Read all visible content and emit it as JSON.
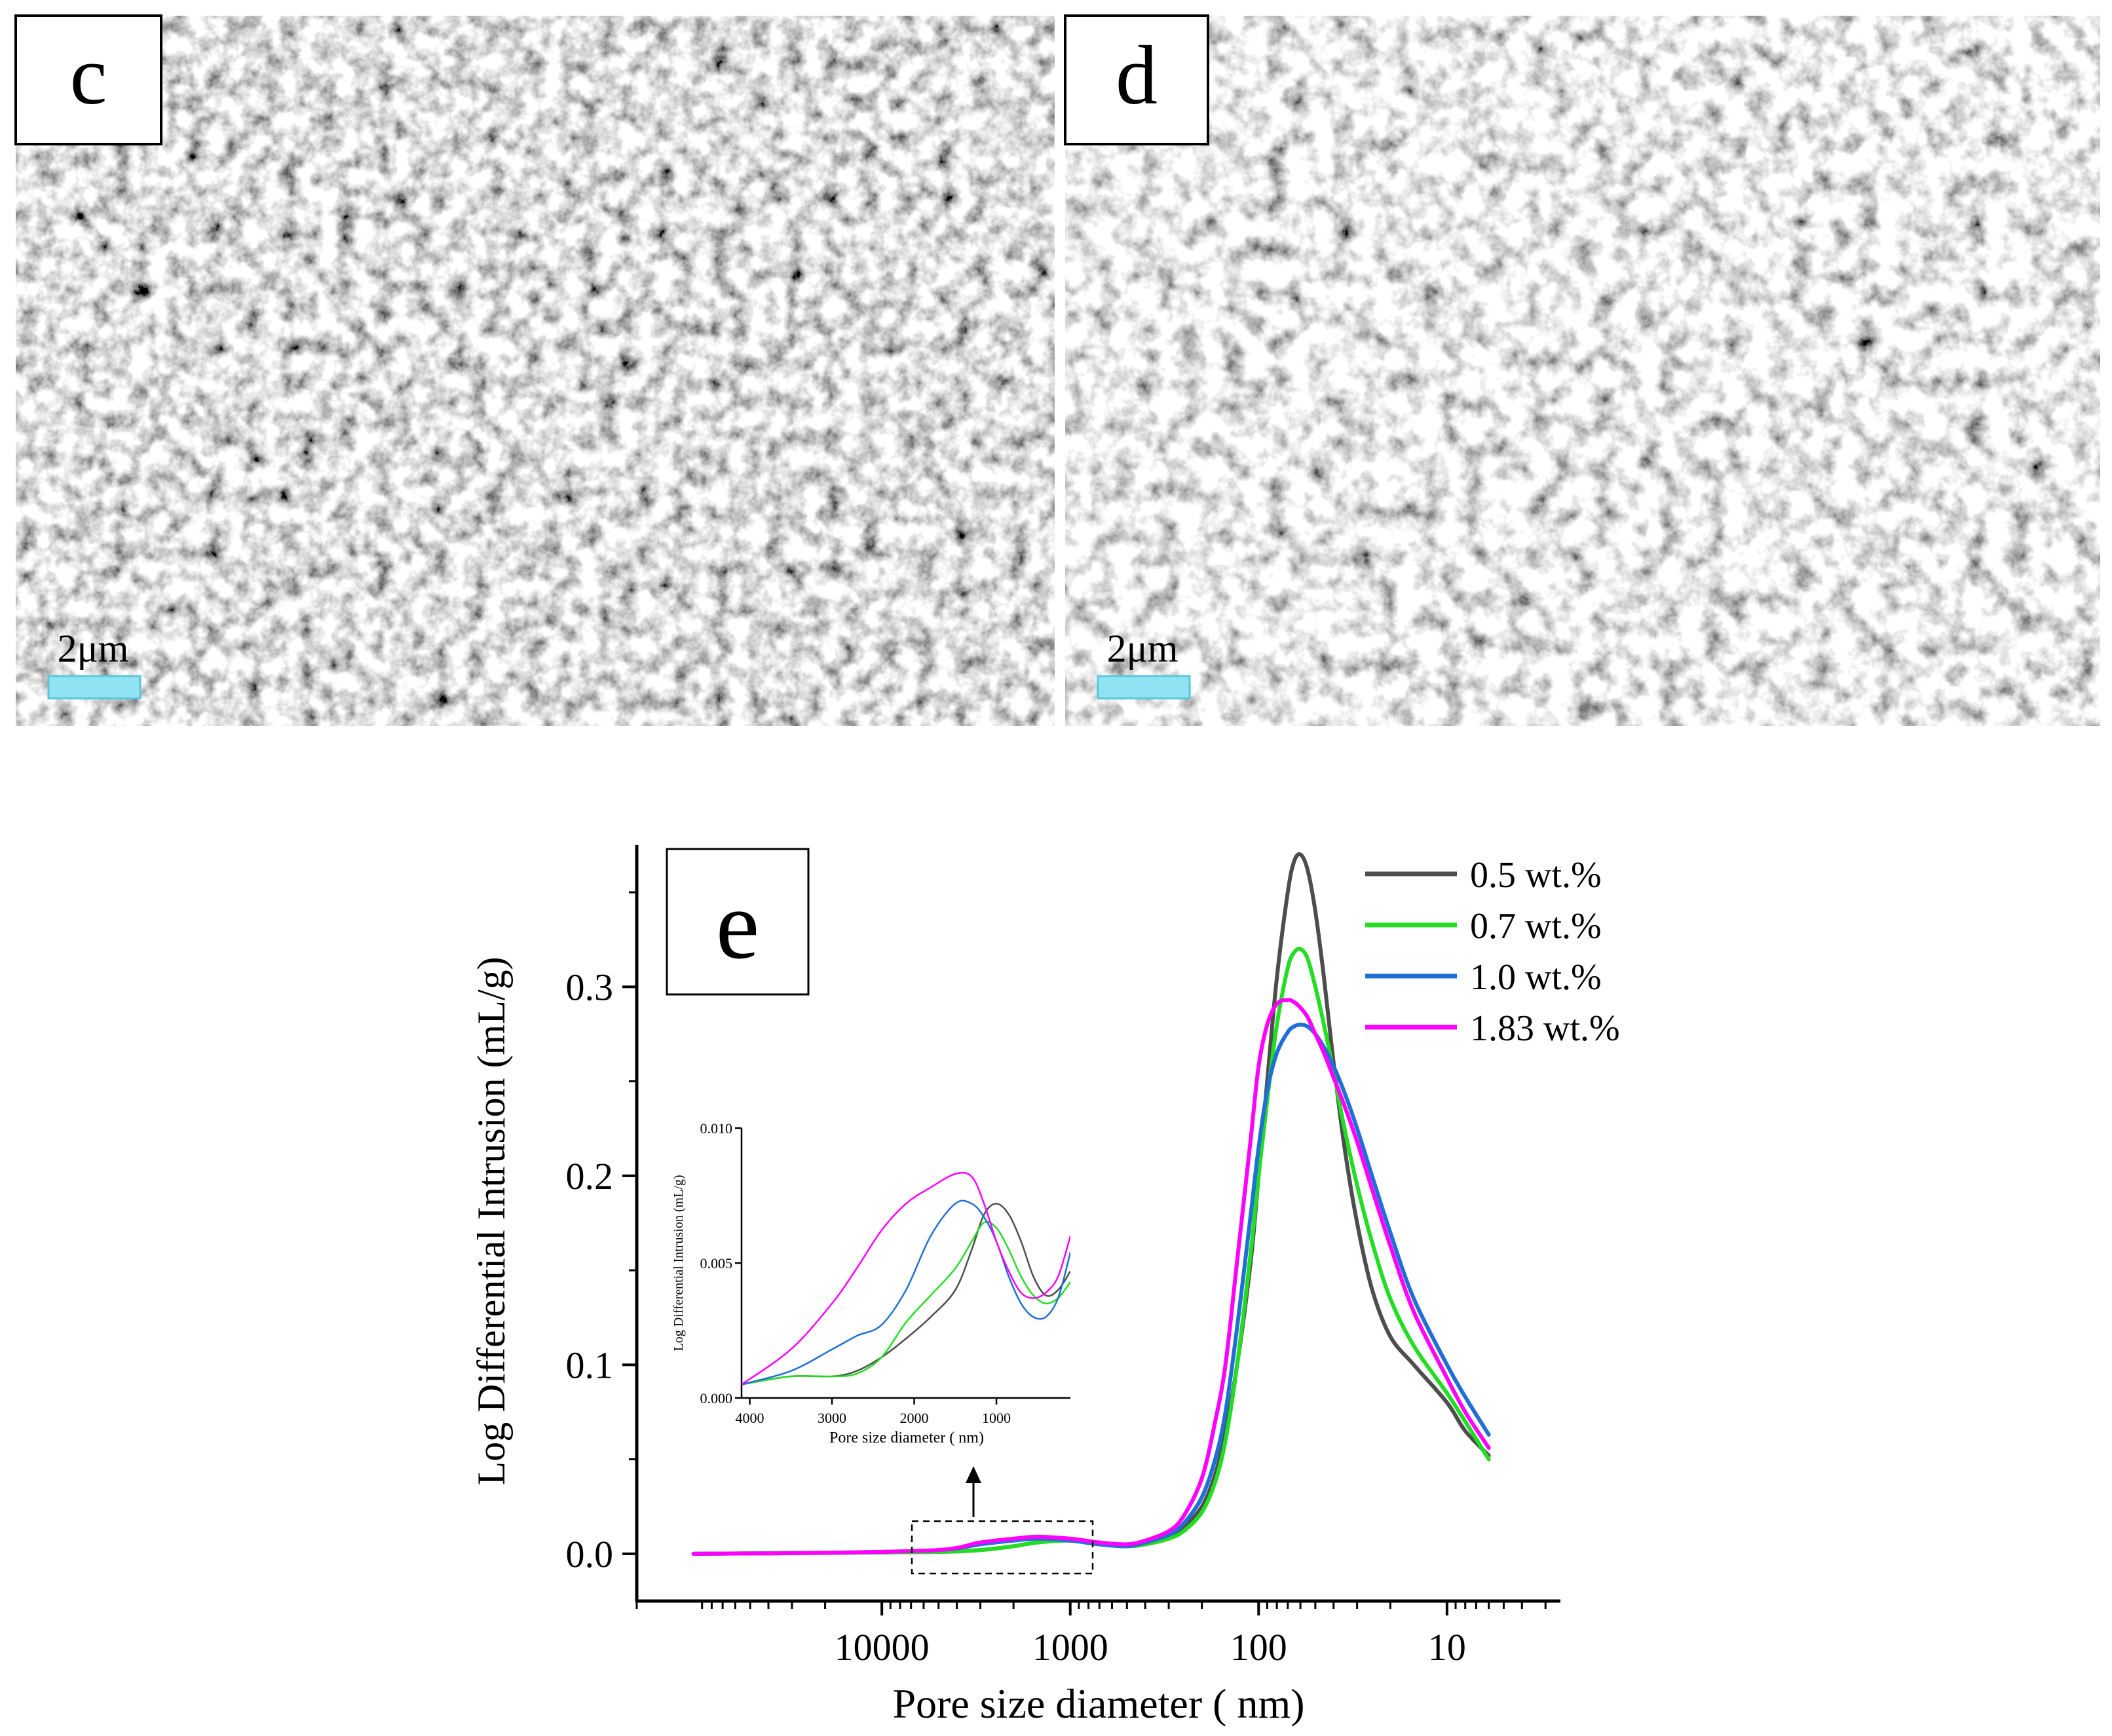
{
  "panels": {
    "c": {
      "label": "c",
      "scale_bar": "2μm"
    },
    "d": {
      "label": "d",
      "scale_bar": "2μm"
    },
    "e": {
      "label": "e"
    }
  },
  "colors": {
    "s05": "#4d4d4d",
    "s07": "#22dd22",
    "s10": "#1f6fd6",
    "s183": "#ff00ff",
    "scale_bar": "#8fe3f3"
  },
  "chart_data": [
    {
      "type": "line",
      "xscale": "log",
      "x_reversed": true,
      "xlabel": "Pore size diameter ( nm)",
      "ylabel": "Log Differential Intrusion (mL/g)",
      "xlim": [
        200000,
        2.5
      ],
      "ylim": [
        -0.025,
        0.375
      ],
      "xticks": [
        10000,
        1000,
        100,
        10
      ],
      "xtick_labels": [
        "10000",
        "1000",
        "100",
        "10"
      ],
      "yticks": [
        0.0,
        0.1,
        0.2,
        0.3
      ],
      "ytick_labels": [
        "0.0",
        "0.1",
        "0.2",
        "0.3"
      ],
      "legend": "top-right",
      "series": [
        {
          "name": "0.5 wt.%",
          "color": "#4d4d4d",
          "x": [
            100000,
            20000,
            5000,
            3000,
            2000,
            1500,
            1000,
            700,
            500,
            400,
            300,
            250,
            200,
            170,
            150,
            130,
            110,
            100,
            90,
            80,
            70,
            65,
            60,
            55,
            50,
            45,
            40,
            35,
            30,
            25,
            20,
            15,
            10,
            8,
            6
          ],
          "y": [
            0.0,
            0.0005,
            0.001,
            0.002,
            0.004,
            0.006,
            0.007,
            0.005,
            0.004,
            0.006,
            0.009,
            0.014,
            0.025,
            0.042,
            0.065,
            0.1,
            0.155,
            0.2,
            0.25,
            0.305,
            0.35,
            0.366,
            0.37,
            0.362,
            0.34,
            0.305,
            0.26,
            0.215,
            0.175,
            0.14,
            0.115,
            0.1,
            0.08,
            0.065,
            0.052
          ]
        },
        {
          "name": "0.7 wt.%",
          "color": "#22dd22",
          "x": [
            100000,
            20000,
            5000,
            3000,
            2000,
            1500,
            1000,
            700,
            500,
            400,
            300,
            250,
            200,
            170,
            150,
            130,
            110,
            100,
            90,
            80,
            70,
            65,
            60,
            55,
            50,
            45,
            40,
            35,
            30,
            25,
            20,
            15,
            10,
            8,
            6
          ],
          "y": [
            0.0,
            0.0005,
            0.001,
            0.002,
            0.004,
            0.006,
            0.007,
            0.005,
            0.004,
            0.005,
            0.008,
            0.012,
            0.022,
            0.038,
            0.06,
            0.1,
            0.16,
            0.2,
            0.24,
            0.28,
            0.31,
            0.318,
            0.32,
            0.315,
            0.3,
            0.28,
            0.255,
            0.225,
            0.195,
            0.165,
            0.135,
            0.11,
            0.085,
            0.07,
            0.05
          ]
        },
        {
          "name": "1.0 wt.%",
          "color": "#1f6fd6",
          "x": [
            100000,
            20000,
            5000,
            3000,
            2000,
            1500,
            1000,
            700,
            500,
            400,
            300,
            250,
            200,
            170,
            150,
            130,
            110,
            100,
            90,
            80,
            70,
            65,
            60,
            55,
            50,
            45,
            40,
            35,
            30,
            25,
            20,
            15,
            10,
            8,
            6
          ],
          "y": [
            0.0,
            0.0005,
            0.002,
            0.005,
            0.007,
            0.008,
            0.007,
            0.005,
            0.004,
            0.006,
            0.01,
            0.016,
            0.03,
            0.05,
            0.075,
            0.12,
            0.18,
            0.215,
            0.245,
            0.265,
            0.276,
            0.279,
            0.28,
            0.279,
            0.275,
            0.268,
            0.258,
            0.244,
            0.225,
            0.2,
            0.17,
            0.135,
            0.1,
            0.083,
            0.063
          ]
        },
        {
          "name": "1.83 wt.%",
          "color": "#ff00ff",
          "x": [
            100000,
            20000,
            5000,
            3000,
            2000,
            1500,
            1000,
            700,
            500,
            400,
            300,
            250,
            200,
            170,
            150,
            130,
            110,
            100,
            90,
            80,
            70,
            65,
            60,
            55,
            50,
            45,
            40,
            35,
            30,
            25,
            20,
            15,
            10,
            8,
            6
          ],
          "y": [
            0.0,
            0.0005,
            0.002,
            0.006,
            0.008,
            0.009,
            0.008,
            0.006,
            0.005,
            0.007,
            0.012,
            0.02,
            0.04,
            0.07,
            0.1,
            0.155,
            0.22,
            0.258,
            0.28,
            0.291,
            0.293,
            0.292,
            0.289,
            0.284,
            0.275,
            0.265,
            0.252,
            0.237,
            0.218,
            0.193,
            0.163,
            0.128,
            0.093,
            0.075,
            0.056
          ]
        }
      ]
    },
    {
      "type": "line",
      "xscale": "linear",
      "x_reversed": true,
      "xlabel": "Pore size diameter ( nm)",
      "ylabel": "Log Differential Intrusion (mL/g)",
      "xlim": [
        4100,
        100
      ],
      "ylim": [
        0,
        0.01
      ],
      "xticks": [
        4000,
        3000,
        2000,
        1000
      ],
      "xtick_labels": [
        "4000",
        "3000",
        "2000",
        "1000"
      ],
      "yticks": [
        0.0,
        0.005,
        0.01
      ],
      "ytick_labels": [
        "0.000",
        "0.005",
        "0.010"
      ],
      "series": [
        {
          "name": "0.5 wt.%",
          "color": "#4d4d4d",
          "x": [
            4100,
            3500,
            3000,
            2700,
            2400,
            2100,
            1800,
            1500,
            1300,
            1150,
            1000,
            850,
            700,
            550,
            400,
            250,
            100
          ],
          "y": [
            0.0005,
            0.0008,
            0.0008,
            0.001,
            0.0015,
            0.0022,
            0.003,
            0.004,
            0.0055,
            0.0068,
            0.0072,
            0.0068,
            0.0058,
            0.0045,
            0.0038,
            0.004,
            0.0047
          ]
        },
        {
          "name": "0.7 wt.%",
          "color": "#22dd22",
          "x": [
            4100,
            3500,
            3000,
            2700,
            2400,
            2100,
            1800,
            1500,
            1300,
            1150,
            1000,
            850,
            700,
            550,
            400,
            250,
            100
          ],
          "y": [
            0.0005,
            0.0008,
            0.0008,
            0.0009,
            0.0015,
            0.0028,
            0.0038,
            0.0048,
            0.0058,
            0.0065,
            0.0063,
            0.0055,
            0.0045,
            0.0038,
            0.0035,
            0.0037,
            0.0043
          ]
        },
        {
          "name": "1.0 wt.%",
          "color": "#1f6fd6",
          "x": [
            4100,
            3500,
            3000,
            2700,
            2400,
            2100,
            1800,
            1500,
            1300,
            1150,
            1000,
            850,
            700,
            550,
            400,
            250,
            100
          ],
          "y": [
            0.0005,
            0.001,
            0.0018,
            0.0023,
            0.0027,
            0.004,
            0.006,
            0.0072,
            0.0072,
            0.0067,
            0.0058,
            0.0045,
            0.0035,
            0.003,
            0.003,
            0.0037,
            0.0054
          ]
        },
        {
          "name": "1.83 wt.%",
          "color": "#ff00ff",
          "x": [
            4100,
            3500,
            3000,
            2700,
            2400,
            2100,
            1800,
            1500,
            1300,
            1150,
            1000,
            850,
            700,
            550,
            400,
            250,
            100
          ],
          "y": [
            0.0005,
            0.0018,
            0.0035,
            0.0048,
            0.0062,
            0.0072,
            0.0078,
            0.0083,
            0.0082,
            0.0072,
            0.0058,
            0.0047,
            0.0039,
            0.0037,
            0.0039,
            0.0045,
            0.006
          ]
        }
      ]
    }
  ]
}
